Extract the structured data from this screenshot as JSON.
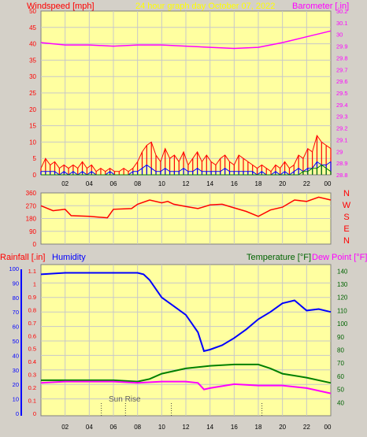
{
  "header": {
    "left_label": "Windspeed [mph]",
    "center_label": "24 hour graph day   October 07, 2022",
    "right_label": "Barometer [.in]"
  },
  "colors": {
    "background": "#d4d0c8",
    "plot_bg": "#ffffa0",
    "grid": "#c8c8c8",
    "red": "#ff0000",
    "blue": "#0000ff",
    "green": "#008000",
    "magenta": "#ff00ff",
    "yellow_text": "#ffff00",
    "dark_green_text": "#006400"
  },
  "x_ticks": [
    "02",
    "04",
    "06",
    "08",
    "10",
    "12",
    "14",
    "16",
    "18",
    "20",
    "22",
    "00"
  ],
  "chart_data": [
    {
      "type": "line",
      "name": "wind-barometer",
      "xlim": [
        0,
        24
      ],
      "y_left": {
        "label": "Windspeed [mph]",
        "ylim": [
          0,
          50
        ],
        "ticks": [
          0,
          5,
          10,
          15,
          20,
          25,
          30,
          35,
          40,
          45,
          50
        ]
      },
      "y_right": {
        "label": "Barometer [.in]",
        "ylim": [
          28.8,
          30.2
        ],
        "ticks": [
          "28.8",
          "28.9",
          "29",
          "29.1",
          "29.2",
          "29.3",
          "29.4",
          "29.5",
          "29.6",
          "29.7",
          "29.8",
          "29.9",
          "30",
          "30.1",
          "30.2"
        ]
      },
      "series": [
        {
          "key": "gust",
          "color": "#ff0000",
          "values": [
            2,
            5,
            3,
            4,
            2,
            3,
            2,
            3,
            2,
            4,
            2,
            3,
            1,
            2,
            1,
            2,
            1,
            1,
            2,
            1,
            2,
            4,
            7,
            9,
            10,
            6,
            4,
            8,
            5,
            6,
            4,
            7,
            3,
            5,
            7,
            4,
            6,
            4,
            3,
            5,
            6,
            4,
            3,
            6,
            5,
            4,
            3,
            2,
            3,
            2,
            1,
            3,
            2,
            4,
            2,
            3,
            6,
            5,
            8,
            7,
            12,
            10,
            9,
            8
          ]
        },
        {
          "key": "windspeed",
          "color": "#0000ff",
          "values": [
            1,
            1,
            1,
            1,
            0,
            1,
            0,
            1,
            0,
            1,
            0,
            1,
            0,
            0,
            0,
            1,
            0,
            0,
            0,
            0,
            1,
            1,
            2,
            3,
            2,
            1,
            1,
            2,
            1,
            1,
            1,
            2,
            1,
            1,
            2,
            1,
            1,
            1,
            1,
            1,
            2,
            1,
            1,
            1,
            1,
            1,
            1,
            0,
            1,
            0,
            0,
            1,
            0,
            1,
            0,
            1,
            2,
            1,
            2,
            2,
            4,
            3,
            3,
            4
          ]
        },
        {
          "key": "direction-green",
          "color": "#008000",
          "values": [
            0,
            0,
            0,
            0,
            0,
            0,
            0,
            0,
            0,
            0,
            0,
            0,
            0,
            0,
            0,
            0,
            0,
            0,
            0,
            0,
            0,
            0,
            0,
            0,
            0,
            0,
            0,
            0,
            0,
            0,
            0,
            0,
            0,
            0,
            0,
            0,
            0,
            0,
            0,
            0,
            0,
            0,
            0,
            0,
            0,
            0,
            0,
            0,
            0,
            0,
            0,
            0,
            0,
            0,
            0,
            0,
            0,
            1,
            1,
            2,
            2,
            3,
            2,
            1
          ]
        },
        {
          "key": "barometer",
          "color": "#ff00ff",
          "axis": "right",
          "x": [
            0,
            2,
            4,
            6,
            8,
            10,
            12,
            14,
            16,
            18,
            20,
            22,
            24
          ],
          "values": [
            29.93,
            29.91,
            29.91,
            29.9,
            29.91,
            29.91,
            29.9,
            29.89,
            29.88,
            29.89,
            29.93,
            29.98,
            30.03
          ]
        }
      ]
    },
    {
      "type": "line",
      "name": "wind-direction",
      "xlim": [
        0,
        24
      ],
      "y_left": {
        "ylim": [
          0,
          360
        ],
        "ticks": [
          0,
          90,
          180,
          270,
          360
        ]
      },
      "y_right_letters": [
        "N",
        "W",
        "S",
        "E",
        "N"
      ],
      "series": [
        {
          "key": "direction",
          "color": "#ff0000",
          "x": [
            0,
            1,
            2,
            2.5,
            4,
            5.5,
            6,
            7.5,
            8,
            9,
            10,
            10.5,
            11,
            12,
            13,
            14,
            15,
            16,
            17,
            18,
            19,
            20,
            21,
            22,
            23,
            24
          ],
          "values": [
            270,
            235,
            245,
            200,
            195,
            185,
            245,
            250,
            280,
            310,
            290,
            300,
            280,
            265,
            250,
            275,
            280,
            255,
            230,
            195,
            240,
            260,
            310,
            300,
            330,
            310
          ]
        }
      ]
    },
    {
      "type": "line",
      "name": "humidity-temperature",
      "xlim": [
        0,
        24
      ],
      "labels": {
        "rainfall": "Rainfall [.in]",
        "humidity": "Humidity",
        "temperature": "Temperature [°F]",
        "dewpoint": "Dew Point [°F]"
      },
      "y_left_humidity": {
        "ticks": [
          0,
          10,
          20,
          30,
          40,
          50,
          60,
          70,
          80,
          90,
          100
        ]
      },
      "y_left_rain": {
        "ticks": [
          "0",
          "0.1",
          "0.2",
          "0.3",
          "0.4",
          "0.5",
          "0.6",
          "0.7",
          "0.8",
          "0.9",
          "1",
          "1.1"
        ]
      },
      "y_right": {
        "ylim": [
          30,
          145
        ],
        "ticks": [
          40,
          50,
          60,
          70,
          80,
          90,
          100,
          110,
          120,
          130,
          140
        ]
      },
      "annotations": [
        "Sun Rise"
      ],
      "series": [
        {
          "key": "humidity",
          "color": "#0000ff",
          "x": [
            0,
            2,
            4,
            6,
            7,
            8,
            8.5,
            9,
            10,
            11,
            12,
            12.5,
            13,
            13.5,
            14,
            15,
            16,
            17,
            18,
            19,
            20,
            21,
            22,
            23,
            24
          ],
          "values": [
            96,
            97,
            97,
            97,
            97,
            97,
            96,
            92,
            80,
            74,
            68,
            62,
            56,
            43,
            44,
            47,
            52,
            58,
            65,
            70,
            76,
            78,
            71,
            72,
            70
          ]
        },
        {
          "key": "temperature",
          "color": "#008000",
          "axis": "right",
          "x": [
            0,
            2,
            4,
            6,
            8,
            9,
            10,
            12,
            14,
            16,
            18,
            19,
            20,
            22,
            24
          ],
          "values": [
            57,
            57,
            57,
            57,
            56,
            58,
            62,
            66,
            68,
            69,
            69,
            66,
            62,
            59,
            55
          ]
        },
        {
          "key": "dewpoint",
          "color": "#ff00ff",
          "axis": "right",
          "x": [
            0,
            2,
            4,
            6,
            8,
            10,
            12,
            13,
            13.5,
            14,
            16,
            18,
            20,
            22,
            24
          ],
          "values": [
            55,
            56,
            56,
            56,
            55,
            56,
            56,
            55,
            50,
            51,
            54,
            53,
            53,
            51,
            47
          ]
        }
      ]
    }
  ]
}
